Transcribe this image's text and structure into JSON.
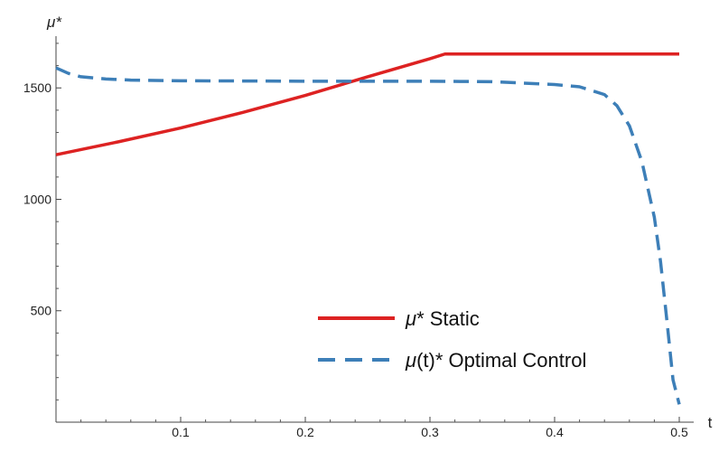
{
  "chart_data": {
    "type": "line",
    "title": "",
    "xlabel": "t",
    "ylabel": "μ*",
    "xlim": [
      0,
      0.5
    ],
    "ylim": [
      0,
      1720
    ],
    "xticks": [
      0.1,
      0.2,
      0.3,
      0.4,
      0.5
    ],
    "xtick_labels": [
      "0.1",
      "0.2",
      "0.3",
      "0.4",
      "0.5"
    ],
    "yticks": [
      500,
      1000,
      1500
    ],
    "ytick_labels": [
      "500",
      "1000",
      "1500"
    ],
    "grid": false,
    "legend_position": "bottom-right",
    "series": [
      {
        "name_parts": [
          "μ",
          "* Static"
        ],
        "color": "#dd2222",
        "style": "solid",
        "x": [
          0,
          0.05,
          0.1,
          0.15,
          0.2,
          0.25,
          0.3,
          0.312,
          0.35,
          0.4,
          0.45,
          0.5
        ],
        "y": [
          1200,
          1258,
          1320,
          1390,
          1466,
          1550,
          1631,
          1652,
          1652,
          1652,
          1652,
          1652
        ]
      },
      {
        "name_parts": [
          "μ",
          "(t)* Optimal Control"
        ],
        "color": "#3d7fb8",
        "style": "dashed",
        "x": [
          0,
          0.01,
          0.02,
          0.04,
          0.06,
          0.1,
          0.2,
          0.3,
          0.35,
          0.4,
          0.42,
          0.44,
          0.45,
          0.46,
          0.47,
          0.48,
          0.485,
          0.49,
          0.495,
          0.5
        ],
        "y": [
          1590,
          1565,
          1550,
          1540,
          1535,
          1532,
          1530,
          1530,
          1528,
          1515,
          1505,
          1470,
          1420,
          1330,
          1170,
          920,
          720,
          460,
          190,
          80
        ]
      }
    ]
  }
}
